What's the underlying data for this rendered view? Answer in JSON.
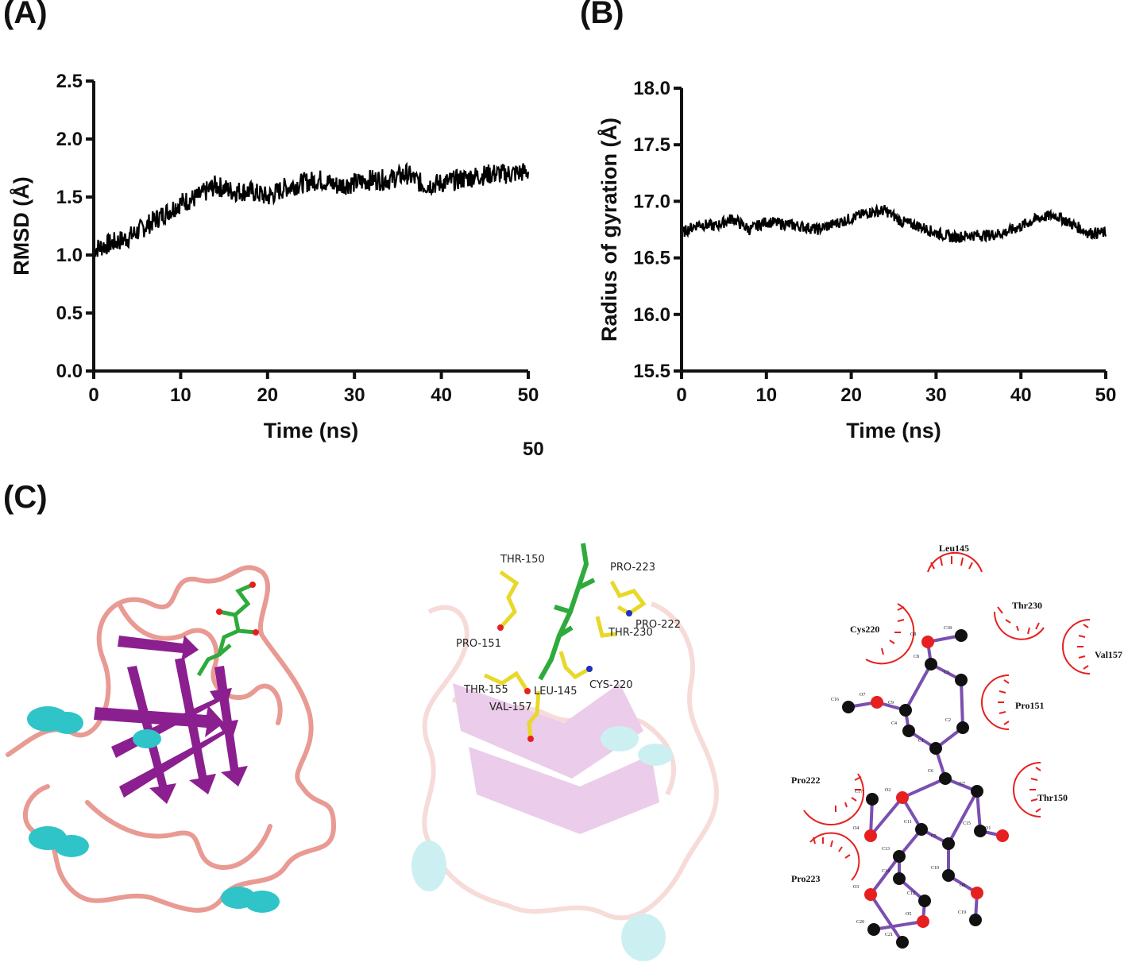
{
  "panels": {
    "a_label": "(A)",
    "b_label": "(B)",
    "c_label": "(C)",
    "stray_label": "50"
  },
  "chart_data": [
    {
      "panel": "A",
      "type": "line",
      "xlabel": "Time (ns)",
      "ylabel": "RMSD (Å)",
      "xlim": [
        0,
        50
      ],
      "ylim": [
        0,
        2.5
      ],
      "xticks": [
        "0",
        "10",
        "20",
        "30",
        "40",
        "50"
      ],
      "yticks": [
        "0.0",
        "0.5",
        "1.0",
        "1.5",
        "2.0",
        "2.5"
      ],
      "grid": false,
      "series": [
        {
          "color": "#000000",
          "x": [
            0,
            2,
            4,
            6,
            8,
            10,
            12,
            14,
            16,
            18,
            20,
            22,
            24,
            26,
            28,
            30,
            32,
            34,
            36,
            38,
            40,
            42,
            44,
            46,
            48,
            50
          ],
          "y": [
            1.05,
            1.1,
            1.15,
            1.25,
            1.35,
            1.45,
            1.5,
            1.6,
            1.55,
            1.55,
            1.5,
            1.58,
            1.62,
            1.65,
            1.6,
            1.62,
            1.65,
            1.65,
            1.7,
            1.6,
            1.62,
            1.65,
            1.68,
            1.7,
            1.7,
            1.72
          ],
          "noise": 0.09
        }
      ]
    },
    {
      "panel": "B",
      "type": "line",
      "xlabel": "Time (ns)",
      "ylabel": "Radius of  gyration (Å)",
      "xlim": [
        0,
        50
      ],
      "ylim": [
        15.5,
        18.0
      ],
      "xticks": [
        "0",
        "10",
        "20",
        "30",
        "40",
        "50"
      ],
      "yticks": [
        "15.5",
        "16.0",
        "16.5",
        "17.0",
        "17.5",
        "18.0"
      ],
      "grid": false,
      "series": [
        {
          "color": "#000000",
          "x": [
            0,
            2,
            4,
            6,
            8,
            10,
            12,
            14,
            16,
            18,
            20,
            22,
            24,
            26,
            28,
            30,
            32,
            34,
            36,
            38,
            40,
            42,
            44,
            46,
            48,
            50
          ],
          "y": [
            16.72,
            16.8,
            16.78,
            16.85,
            16.75,
            16.82,
            16.8,
            16.78,
            16.75,
            16.8,
            16.85,
            16.9,
            16.92,
            16.82,
            16.78,
            16.72,
            16.68,
            16.7,
            16.7,
            16.72,
            16.78,
            16.85,
            16.88,
            16.8,
            16.72,
            16.72
          ],
          "noise": 0.05
        }
      ]
    }
  ],
  "panel_c": {
    "middle_residues": [
      "THR-150",
      "PRO-223",
      "PRO-222",
      "THR-230",
      "PRO-151",
      "THR-155",
      "LEU-145",
      "CYS-220",
      "VAL-157"
    ],
    "ligplot_residues": [
      "Leu145",
      "Thr230",
      "Cys220",
      "Val157",
      "Pro151",
      "Pro222",
      "Thr150",
      "Pro223"
    ],
    "ligplot_atoms": [
      "C18",
      "O8",
      "C8",
      "C3",
      "O7",
      "C16",
      "C9",
      "C2",
      "C4",
      "C1",
      "C6",
      "C7",
      "C17",
      "O2",
      "C15",
      "O1",
      "O4",
      "C11",
      "C5",
      "C13",
      "C10",
      "C14",
      "O3",
      "O6",
      "C12",
      "O5",
      "C20",
      "C19",
      "C21"
    ],
    "colors": {
      "helix": "#2ec4c8",
      "sheet": "#8b1f8f",
      "loop": "#e89a93",
      "ligand": "#2faa3c",
      "residue_stick": "#f0e030",
      "oxygen": "#e62020",
      "nitrogen": "#2030c0",
      "bond": "#7b4fb0",
      "contact_arc": "#e62020"
    }
  }
}
